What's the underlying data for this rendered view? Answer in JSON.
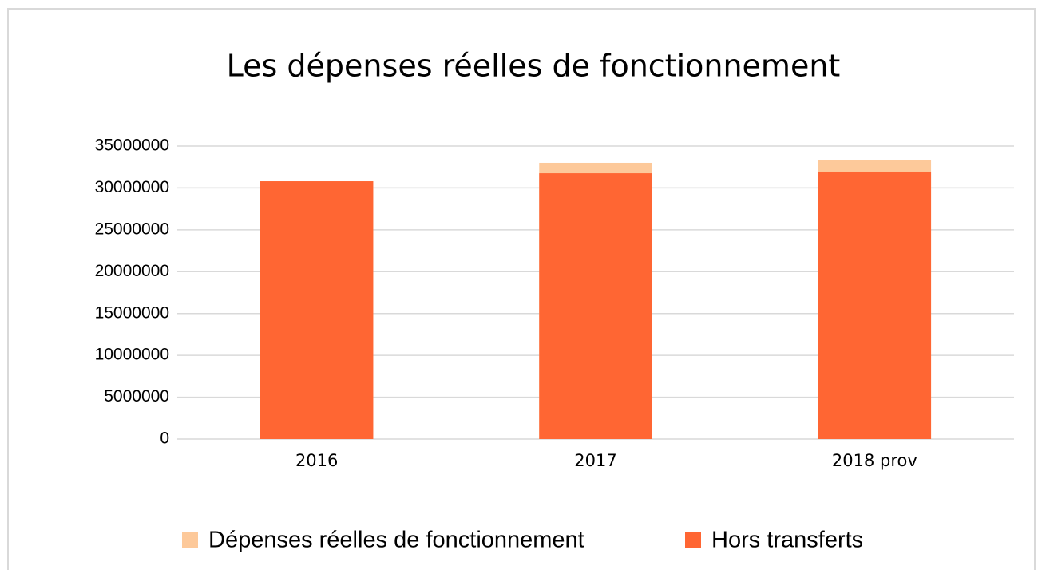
{
  "chart_data": {
    "type": "bar",
    "title": "Les dépenses réelles de fonctionnement",
    "categories": [
      "2016",
      "2017",
      "2018 prov"
    ],
    "series": [
      {
        "name": "Dépenses réelles de fonctionnement",
        "color": "#fdc99a",
        "values": [
          30800000,
          33000000,
          33300000
        ]
      },
      {
        "name": "Hors transferts",
        "color": "#ff6633",
        "values": [
          30800000,
          31750000,
          31950000
        ]
      }
    ],
    "ylim": [
      0,
      35000000
    ],
    "yticks": [
      0,
      5000000,
      10000000,
      15000000,
      20000000,
      25000000,
      30000000,
      35000000
    ],
    "grid": true,
    "legend": "bottom"
  }
}
